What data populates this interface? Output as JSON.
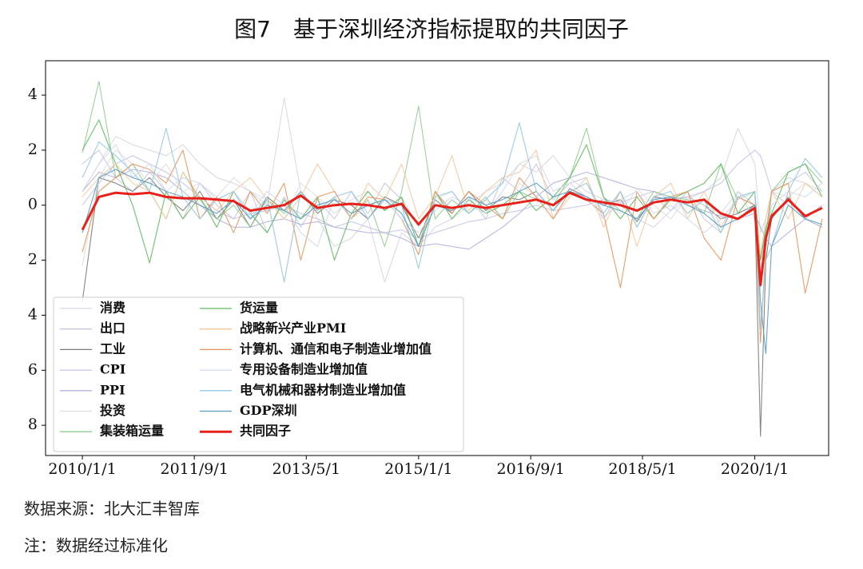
{
  "title": "图7　基于深圳经济指标提取的共同因子",
  "source": "数据来源：北大汇丰智库",
  "note": "注：数据经过标准化",
  "chart_data": {
    "type": "line",
    "x": [
      "2010/1/1",
      "2010/4/1",
      "2010/7/1",
      "2010/10/1",
      "2011/1/1",
      "2011/4/1",
      "2011/7/1",
      "2011/10/1",
      "2012/1/1",
      "2012/4/1",
      "2012/7/1",
      "2012/10/1",
      "2013/1/1",
      "2013/4/1",
      "2013/7/1",
      "2013/10/1",
      "2014/1/1",
      "2014/4/1",
      "2014/7/1",
      "2014/10/1",
      "2015/1/1",
      "2015/4/1",
      "2015/7/1",
      "2015/10/1",
      "2016/1/1",
      "2016/4/1",
      "2016/7/1",
      "2016/10/1",
      "2017/1/1",
      "2017/4/1",
      "2017/7/1",
      "2017/10/1",
      "2018/1/1",
      "2018/4/1",
      "2018/7/1",
      "2018/10/1",
      "2019/1/1",
      "2019/4/1",
      "2019/7/1",
      "2019/10/1",
      "2020/1/1",
      "2020/2/1",
      "2020/3/1",
      "2020/4/1",
      "2020/7/1",
      "2020/10/1",
      "2021/1/1"
    ],
    "xlim": [
      "2009/6/15",
      "2021/2/5"
    ],
    "xticks": [
      "2010/1/1",
      "2011/9/1",
      "2013/5/1",
      "2015/1/1",
      "2016/9/1",
      "2018/5/1",
      "2020/1/1"
    ],
    "ylim": [
      -9.1,
      5.25
    ],
    "yticks": [
      {
        "value": -8,
        "label": "8"
      },
      {
        "value": -6,
        "label": "6"
      },
      {
        "value": -4,
        "label": "4"
      },
      {
        "value": -2,
        "label": "2"
      },
      0,
      2,
      4
    ],
    "legend": "lower left",
    "series": [
      {
        "name": "消费",
        "color": "#d6d6e4",
        "values": [
          0.5,
          1.5,
          2.5,
          2.2,
          2.0,
          1.8,
          2.2,
          1.5,
          1.0,
          0.8,
          0.5,
          0.0,
          3.9,
          0.5,
          -0.5,
          -1.5,
          -1.2,
          -0.5,
          -2.8,
          -1.0,
          -1.5,
          -0.8,
          -0.5,
          0.0,
          0.5,
          0.8,
          1.5,
          1.2,
          1.8,
          1.0,
          0.5,
          0.2,
          0.0,
          -0.5,
          -0.8,
          -0.2,
          0.2,
          0.5,
          1.0,
          2.8,
          1.5,
          -1.0,
          -0.5,
          0.5,
          1.0,
          0.8,
          0.3
        ]
      },
      {
        "name": "出口",
        "color": "#c6c6de",
        "values": [
          1.5,
          2.0,
          1.0,
          0.5,
          1.2,
          0.5,
          -0.5,
          0.8,
          0.0,
          -0.5,
          0.5,
          -1.0,
          0.3,
          -0.8,
          0.2,
          -0.5,
          0.5,
          -0.3,
          0.8,
          0.2,
          -1.5,
          0.5,
          -0.2,
          0.3,
          -0.5,
          1.0,
          0.5,
          1.5,
          0.2,
          0.8,
          1.0,
          -0.5,
          0.5,
          -0.8,
          0.3,
          -0.2,
          0.5,
          -0.5,
          -1.0,
          0.5,
          0.0,
          -3.0,
          -1.5,
          0.5,
          0.8,
          1.2,
          0.5
        ]
      },
      {
        "name": "工业",
        "color": "#7a7a7a",
        "values": [
          -3.5,
          1.0,
          0.8,
          0.5,
          1.0,
          0.3,
          -0.2,
          0.5,
          -0.5,
          0.2,
          -0.8,
          0.3,
          -0.2,
          0.5,
          -0.3,
          0.2,
          0.0,
          -0.5,
          0.3,
          0.0,
          -1.2,
          0.2,
          -0.3,
          0.5,
          -0.2,
          0.3,
          0.2,
          0.5,
          -0.2,
          0.6,
          0.3,
          0.0,
          0.2,
          -0.6,
          0.3,
          0.2,
          0.3,
          0.0,
          -0.5,
          -0.3,
          0.0,
          -8.4,
          -2.0,
          -0.5,
          0.3,
          -0.5,
          -0.8
        ]
      },
      {
        "name": "CPI",
        "color": "#c4c4e6",
        "values": [
          0.0,
          0.8,
          1.5,
          1.8,
          1.5,
          1.2,
          0.8,
          0.3,
          -0.2,
          -0.5,
          -0.3,
          -0.2,
          0.0,
          -0.3,
          -0.5,
          -0.8,
          -0.6,
          -0.8,
          -1.0,
          -0.9,
          -1.2,
          -1.0,
          -0.8,
          -0.6,
          -0.5,
          -0.3,
          -0.2,
          0.0,
          -0.2,
          -0.1,
          0.0,
          0.2,
          0.1,
          0.3,
          0.5,
          0.2,
          0.3,
          0.5,
          0.8,
          1.5,
          2.0,
          1.8,
          1.2,
          0.5,
          0.0,
          -0.5,
          -0.8
        ]
      },
      {
        "name": "PPI",
        "color": "#b2b2da",
        "values": [
          0.5,
          1.2,
          1.0,
          1.3,
          1.2,
          1.0,
          0.5,
          0.0,
          -0.5,
          -0.8,
          -0.8,
          -0.6,
          -0.5,
          -0.7,
          -0.6,
          -0.8,
          -0.9,
          -1.0,
          -1.0,
          -1.2,
          -1.5,
          -1.4,
          -1.5,
          -1.6,
          -1.2,
          -0.8,
          -0.3,
          0.3,
          0.8,
          1.0,
          1.2,
          1.0,
          0.8,
          0.6,
          0.5,
          0.3,
          0.0,
          -0.2,
          -0.4,
          -0.5,
          -0.3,
          -0.8,
          -1.2,
          -1.5,
          -1.0,
          -0.5,
          0.0
        ]
      },
      {
        "name": "投资",
        "color": "#dedede",
        "values": [
          -2.2,
          1.0,
          2.0,
          1.5,
          0.8,
          1.5,
          0.5,
          0.8,
          0.3,
          1.0,
          0.5,
          0.2,
          -0.5,
          0.8,
          0.3,
          -0.3,
          0.2,
          0.5,
          -0.2,
          0.3,
          -0.8,
          0.2,
          0.5,
          -0.3,
          0.2,
          -0.5,
          0.8,
          0.3,
          0.0,
          1.0,
          0.5,
          0.2,
          -0.3,
          0.6,
          0.0,
          -0.5,
          0.3,
          0.0,
          -0.3,
          0.5,
          -0.5,
          -2.5,
          -1.0,
          0.5,
          0.3,
          0.8,
          0.5
        ]
      },
      {
        "name": "集装箱运量",
        "color": "#92cc92",
        "values": [
          1.9,
          4.5,
          1.0,
          1.5,
          0.5,
          -0.5,
          1.2,
          0.2,
          -0.5,
          0.0,
          -0.8,
          0.2,
          -0.3,
          0.5,
          -0.2,
          0.3,
          -0.5,
          0.2,
          -1.5,
          0.5,
          3.6,
          -0.5,
          0.2,
          -0.3,
          0.3,
          -0.5,
          0.5,
          0.2,
          0.0,
          1.0,
          2.8,
          0.3,
          -0.2,
          -0.5,
          0.5,
          0.3,
          0.2,
          -0.3,
          1.5,
          0.2,
          0.5,
          -2.0,
          -1.0,
          0.5,
          1.2,
          1.5,
          0.8
        ]
      },
      {
        "name": "货运量",
        "color": "#5fb95f",
        "values": [
          2.0,
          3.1,
          1.5,
          0.0,
          -2.1,
          0.5,
          -0.5,
          0.3,
          -0.8,
          0.5,
          -0.3,
          -1.0,
          0.2,
          -0.5,
          0.3,
          -2.0,
          -0.3,
          0.5,
          -0.2,
          0.3,
          -1.5,
          0.5,
          -0.5,
          0.2,
          -0.3,
          0.0,
          0.5,
          -0.2,
          0.3,
          1.0,
          2.2,
          0.3,
          -0.5,
          0.3,
          -0.5,
          0.2,
          0.5,
          0.8,
          1.5,
          -0.3,
          0.5,
          -2.0,
          -0.8,
          -0.3,
          1.2,
          1.5,
          0.3
        ]
      },
      {
        "name": "战略新兴产业PMI",
        "color": "#f5c89c",
        "values": [
          0.3,
          1.0,
          1.5,
          0.8,
          0.5,
          -0.5,
          1.2,
          0.3,
          -0.2,
          0.5,
          1.0,
          0.2,
          -0.5,
          0.3,
          1.5,
          0.5,
          -0.5,
          0.8,
          0.2,
          1.5,
          -0.5,
          0.3,
          1.8,
          -0.2,
          0.5,
          1.0,
          1.2,
          2.0,
          -0.5,
          0.3,
          1.0,
          -0.8,
          0.5,
          -1.5,
          0.3,
          0.8,
          -0.5,
          0.5,
          -0.8,
          0.3,
          0.0,
          -1.8,
          -0.5,
          0.5,
          -0.5,
          0.8,
          0.3
        ]
      },
      {
        "name": "计算机、通信和电子制造业增加值",
        "color": "#e8935a",
        "values": [
          -1.7,
          0.5,
          1.0,
          1.5,
          1.3,
          0.8,
          2.0,
          -0.5,
          0.3,
          -1.0,
          0.5,
          -0.3,
          0.8,
          -2.0,
          0.3,
          0.5,
          -0.5,
          0.3,
          0.2,
          -0.5,
          -1.8,
          0.5,
          -0.3,
          0.5,
          0.0,
          -0.5,
          1.0,
          0.3,
          -0.5,
          0.5,
          0.2,
          -0.3,
          -3.0,
          0.5,
          -0.5,
          0.3,
          0.5,
          -1.2,
          -2.0,
          0.3,
          0.0,
          -5.0,
          -1.5,
          0.5,
          0.8,
          -3.2,
          -0.5
        ]
      },
      {
        "name": "专用设备制造业增加值",
        "color": "#d2d8ea",
        "values": [
          0.5,
          1.5,
          2.2,
          1.0,
          1.5,
          0.5,
          1.0,
          0.8,
          0.2,
          0.5,
          -0.3,
          0.5,
          0.0,
          -1.0,
          -1.5,
          0.3,
          -0.5,
          0.0,
          0.2,
          -0.5,
          -1.0,
          -0.2,
          0.3,
          0.0,
          -0.3,
          0.5,
          1.5,
          1.8,
          0.5,
          0.8,
          0.3,
          -0.5,
          0.2,
          0.5,
          -0.3,
          0.0,
          -0.5,
          -1.0,
          -0.5,
          0.2,
          0.5,
          -3.0,
          -1.5,
          0.0,
          0.5,
          0.3,
          0.8
        ]
      },
      {
        "name": "电气机械和器材制造业增加值",
        "color": "#92c8e2",
        "values": [
          1.0,
          2.3,
          1.8,
          1.2,
          0.5,
          2.8,
          0.3,
          -0.5,
          0.2,
          0.5,
          -0.5,
          0.3,
          -2.8,
          0.5,
          -0.2,
          0.3,
          0.5,
          -0.5,
          0.2,
          0.0,
          -2.3,
          0.3,
          0.5,
          -0.3,
          0.2,
          0.8,
          3.0,
          0.5,
          -0.2,
          0.5,
          0.8,
          -0.3,
          0.5,
          -0.8,
          0.3,
          0.5,
          -0.3,
          0.2,
          -1.0,
          0.3,
          0.5,
          -4.5,
          -2.0,
          -1.5,
          0.5,
          1.7,
          1.0
        ]
      },
      {
        "name": "GDP深圳",
        "color": "#5a9cc2",
        "values": [
          -1.0,
          1.0,
          1.3,
          1.0,
          0.8,
          0.5,
          0.3,
          0.0,
          -0.3,
          0.2,
          -0.5,
          0.0,
          -0.2,
          -0.5,
          0.0,
          0.2,
          -0.3,
          0.0,
          0.2,
          -0.3,
          -1.5,
          0.0,
          -0.2,
          0.3,
          0.0,
          0.2,
          0.5,
          0.8,
          0.3,
          0.5,
          0.3,
          0.0,
          -0.2,
          -0.5,
          0.2,
          0.3,
          0.0,
          -0.3,
          -0.8,
          -0.5,
          0.0,
          -3.5,
          -5.4,
          -1.5,
          0.0,
          -0.5,
          -0.7
        ]
      },
      {
        "name": "共同因子",
        "color": "#e8201a",
        "values": [
          -0.9,
          0.3,
          0.45,
          0.4,
          0.45,
          0.3,
          0.25,
          0.25,
          0.2,
          0.15,
          -0.2,
          -0.1,
          0.0,
          0.35,
          -0.1,
          0.0,
          0.05,
          0.0,
          -0.1,
          0.05,
          -0.7,
          0.0,
          -0.1,
          0.0,
          -0.1,
          0.0,
          0.1,
          0.2,
          0.0,
          0.45,
          0.2,
          0.1,
          0.0,
          -0.2,
          0.1,
          0.2,
          0.1,
          0.2,
          -0.3,
          -0.5,
          -0.1,
          -2.9,
          -1.2,
          -0.4,
          0.2,
          -0.4,
          -0.1
        ]
      }
    ]
  }
}
